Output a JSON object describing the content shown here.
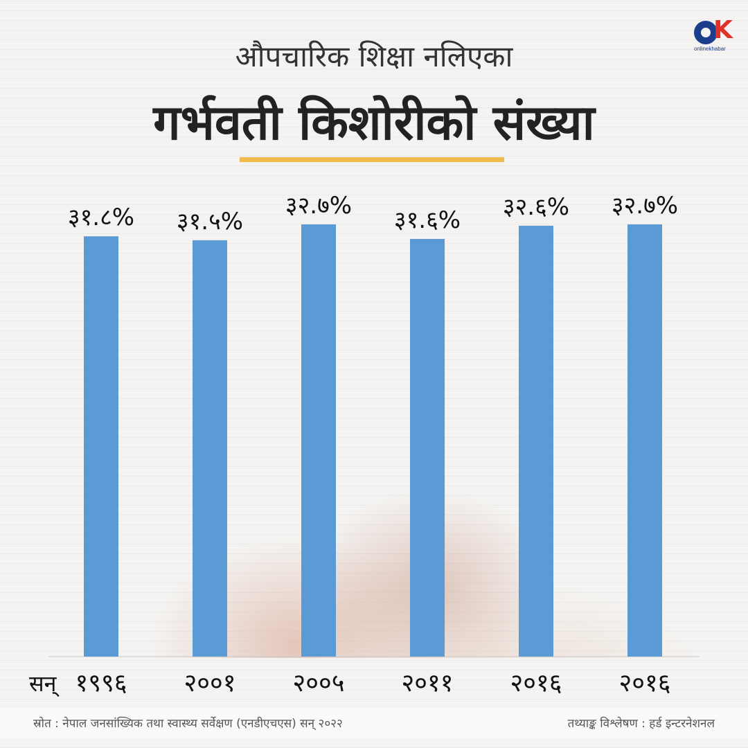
{
  "brand": {
    "logo_text": "onlinekhabar"
  },
  "header": {
    "subtitle": "औपचारिक शिक्षा नलिएका",
    "title": "गर्भवती किशोरीको संख्या"
  },
  "chart_data": {
    "type": "bar",
    "title": "गर्भवती किशोरीको संख्या",
    "subtitle": "औपचारिक शिक्षा नलिएका",
    "x_prefix": "सन्",
    "categories": [
      "१९९६",
      "२००१",
      "२००५",
      "२०११",
      "२०१६",
      "२०१६"
    ],
    "values": [
      31.8,
      31.5,
      32.7,
      31.6,
      32.6,
      32.7
    ],
    "value_labels": [
      "३१.८%",
      "३१.५%",
      "३२.७%",
      "३१.६%",
      "३२.६%",
      "३२.७%"
    ],
    "bar_color": "#5b9bd5",
    "grid": false,
    "legend": "none"
  },
  "footer": {
    "source": "स्रोत : नेपाल जनसांख्यिक तथा स्वास्थ्य सर्वेक्षण (एनडीएचएस) सन् २०२२",
    "analysis": "तथ्याङ्क विश्लेषण : हर्ड इन्टरनेशनल"
  }
}
